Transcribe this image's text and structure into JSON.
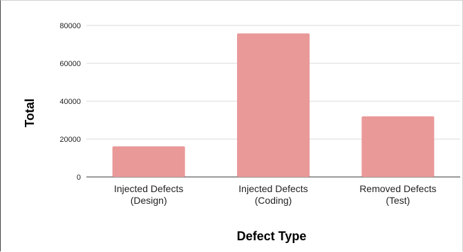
{
  "chart_data": {
    "type": "bar",
    "categories": [
      [
        "Injected Defects",
        "(Design)"
      ],
      [
        "Injected Defects",
        "(Coding)"
      ],
      [
        "Removed Defects",
        "(Test)"
      ]
    ],
    "values": [
      16200,
      75800,
      32000
    ],
    "xlabel": "Defect Type",
    "ylabel": "Total",
    "ylim": [
      0,
      80000
    ],
    "yticks": [
      0,
      20000,
      40000,
      60000,
      80000
    ],
    "grid": true,
    "bar_color": "#ea9999"
  }
}
